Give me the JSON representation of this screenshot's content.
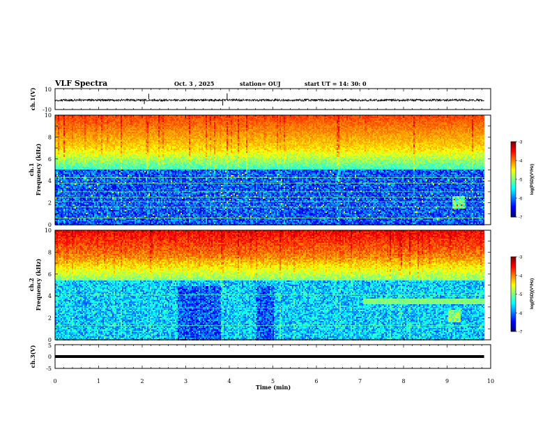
{
  "header": {
    "title": "VLF Spectra",
    "date": "Oct. 3  , 2025",
    "station": "station= OUJ",
    "start_time": "start  UT =   14: 30: 0"
  },
  "chart_data": [
    {
      "type": "line",
      "panel": "ch1-waveform",
      "ylabel": "ch.1(V)",
      "ylim": [
        -10,
        10
      ],
      "yticks": [
        "10",
        "-10"
      ],
      "xlim": [
        0,
        10
      ],
      "series_color": "#000000",
      "description_values": {
        "baseline": 0,
        "noise_amplitude": 1,
        "spikes": [
          {
            "x": 2.05,
            "y": -2.2
          },
          {
            "x": 2.15,
            "y": 2.3
          },
          {
            "x": 3.85,
            "y": -2.8
          },
          {
            "x": 3.95,
            "y": 2.5
          }
        ]
      }
    },
    {
      "type": "heatmap",
      "panel": "ch1-spectrogram",
      "ylabel": "ch.1\nFrequency (kHz)",
      "ylabel_lines": [
        "ch.1",
        "Frequency (kHz)"
      ],
      "xlim": [
        0,
        10
      ],
      "ylim": [
        0,
        10
      ],
      "yticks": [
        "0",
        "2",
        "4",
        "6",
        "8",
        "10"
      ],
      "data_extent_min": 9.85,
      "colorbar": {
        "label": "log(PSD)(V²/Hz)",
        "range": [
          -7,
          -3
        ],
        "ticks": [
          "-3",
          "-4",
          "-5",
          "-6",
          "-7"
        ]
      },
      "features": {
        "high_power_band_khz": [
          6,
          10
        ],
        "low_power_band_khz": [
          0,
          5
        ],
        "horizontal_lines_khz": [
          0.6,
          1.6,
          2.1,
          2.5,
          3.0,
          3.8,
          4.3
        ]
      }
    },
    {
      "type": "heatmap",
      "panel": "ch2-spectrogram",
      "ylabel": "ch.2\nFrequency (kHz)",
      "ylabel_lines": [
        "ch.2",
        "Frequency (kHz)"
      ],
      "xlim": [
        0,
        10
      ],
      "ylim": [
        0,
        10
      ],
      "yticks": [
        "0",
        "2",
        "4",
        "6",
        "8",
        "10"
      ],
      "data_extent_min": 9.85,
      "colorbar": {
        "label": "log(PSD)(V²/Hz)",
        "range": [
          -7,
          -3
        ],
        "ticks": [
          "-3",
          "-4",
          "-5",
          "-6",
          "-7"
        ]
      },
      "features": {
        "high_power_band_khz": [
          6.5,
          10
        ],
        "low_power_band_khz": [
          0,
          6
        ],
        "band_after_7min_khz": [
          3.3,
          3.8
        ]
      }
    },
    {
      "type": "line",
      "panel": "ch3-waveform",
      "ylabel": "ch.3(V)",
      "ylim": [
        -5,
        5
      ],
      "yticks": [
        "5",
        "0",
        "-5"
      ],
      "xlim": [
        0,
        10
      ],
      "xlabel": "Time (min)",
      "xticks": [
        "0",
        "1",
        "2",
        "3",
        "4",
        "5",
        "6",
        "7",
        "8",
        "9",
        "10"
      ],
      "series_color": "#000000",
      "description_values": {
        "baseline": 0
      }
    }
  ]
}
